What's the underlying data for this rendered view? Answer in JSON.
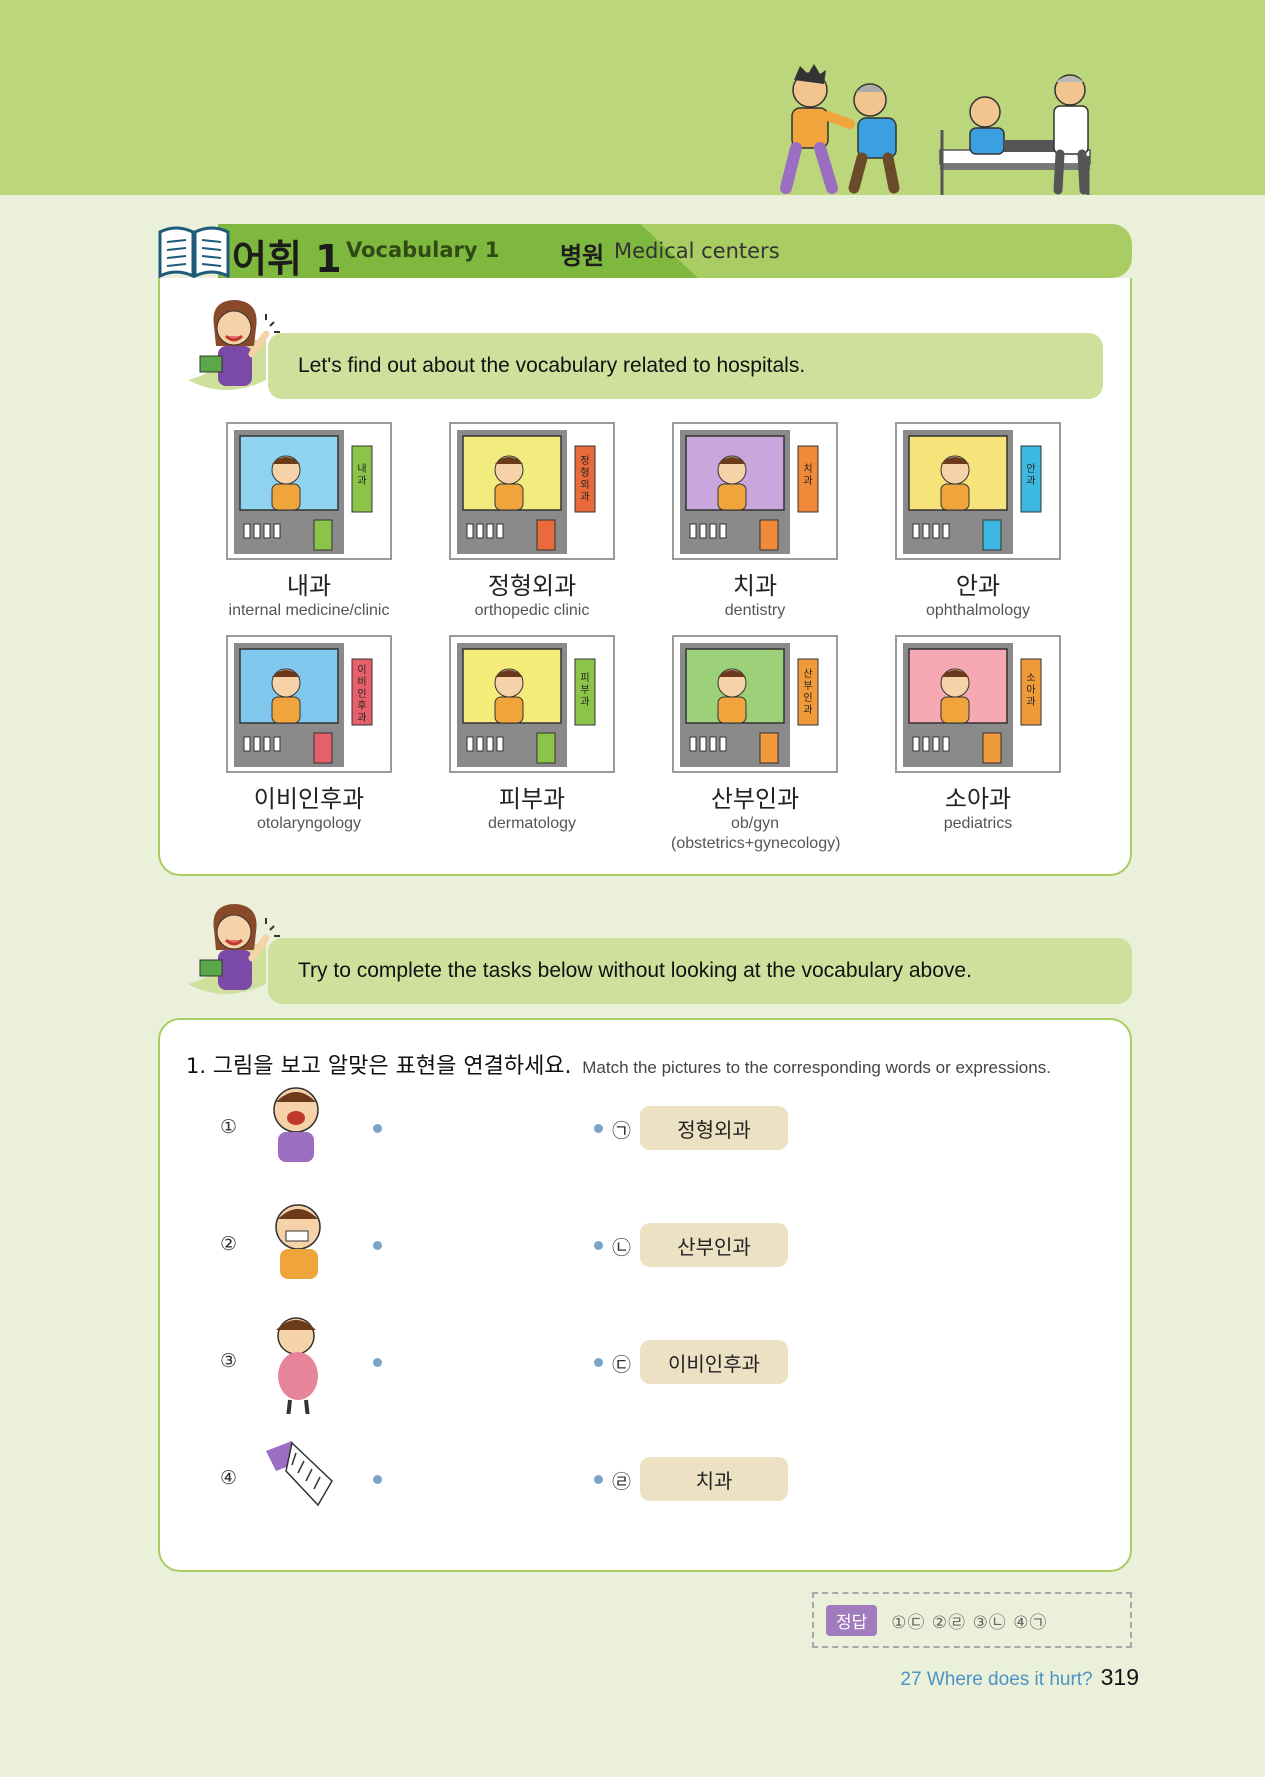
{
  "header": {
    "section_ko": "어휘 1",
    "section_en": "Vocabulary 1",
    "topic_ko": "병원",
    "topic_en": "Medical centers"
  },
  "intro_bubble": "Let's find out about the vocabulary related to hospitals.",
  "vocab": [
    {
      "ko": "내과",
      "en": "internal medicine/clinic",
      "sign": "내과",
      "bg": "#8fd3f0",
      "sign_color": "#8cc44a"
    },
    {
      "ko": "정형외과",
      "en": "orthopedic clinic",
      "sign": "정형외과",
      "bg": "#f2ec7e",
      "sign_color": "#e96a3a"
    },
    {
      "ko": "치과",
      "en": "dentistry",
      "sign": "치과",
      "bg": "#c9a6dc",
      "sign_color": "#f08a3a"
    },
    {
      "ko": "안과",
      "en": "ophthalmology",
      "sign": "안과",
      "bg": "#f6e47a",
      "sign_color": "#3db8e0"
    },
    {
      "ko": "이비인후과",
      "en": "otolaryngology",
      "sign": "이비인후과",
      "bg": "#7fc7ec",
      "sign_color": "#e5606a"
    },
    {
      "ko": "피부과",
      "en": "dermatology",
      "sign": "피부과",
      "bg": "#f6ec7a",
      "sign_color": "#8cc44a"
    },
    {
      "ko": "산부인과",
      "en": "ob/gyn",
      "en2": "(obstetrics+gynecology)",
      "sign": "산부인과",
      "bg": "#9cd17a",
      "sign_color": "#f09a3a"
    },
    {
      "ko": "소아과",
      "en": "pediatrics",
      "sign": "소아과",
      "bg": "#f6a9b2",
      "sign_color": "#f09a3a"
    }
  ],
  "task_bubble": "Try to complete the tasks below without looking at the vocabulary above.",
  "question": {
    "number": "1.",
    "ko": "그림을 보고 알맞은 표현을 연결하세요.",
    "en": "Match the pictures to the corresponding words or expressions."
  },
  "rows": [
    {
      "num": "①",
      "label": "㉠",
      "answer": "정형외과"
    },
    {
      "num": "②",
      "label": "㉡",
      "answer": "산부인과"
    },
    {
      "num": "③",
      "label": "㉢",
      "answer": "이비인후과"
    },
    {
      "num": "④",
      "label": "㉣",
      "answer": "치과"
    }
  ],
  "answer_key": {
    "tag": "정답",
    "values": "①㉢ ②㉣ ③㉡ ④㉠"
  },
  "footer": {
    "chapter": "27 Where does it hurt?",
    "page": "319"
  }
}
